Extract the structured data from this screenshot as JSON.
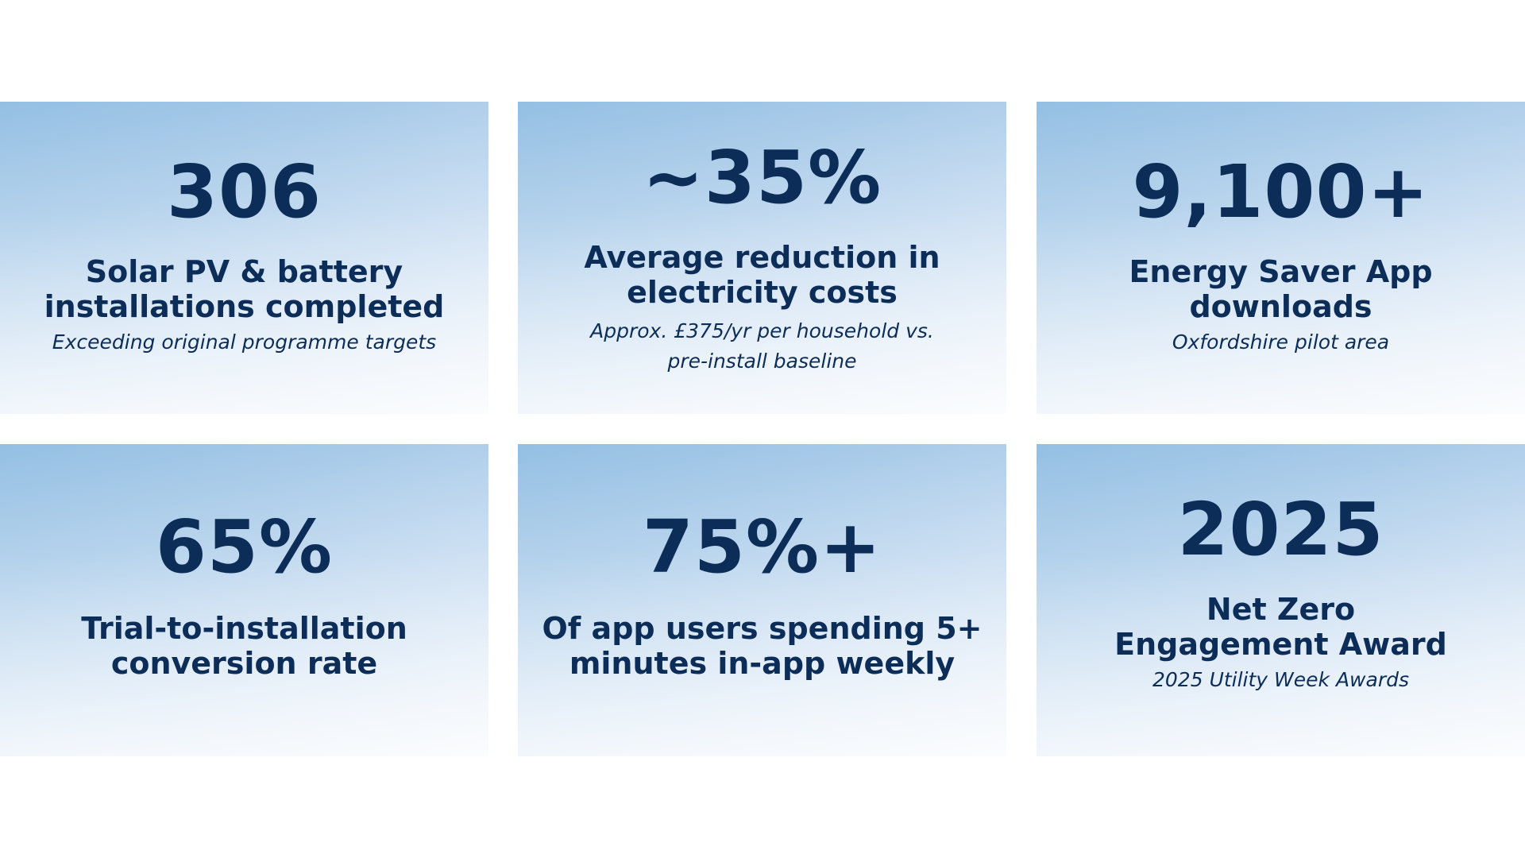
{
  "cards": [
    {
      "stat": "306",
      "label_line1": "Solar PV & battery",
      "label_line2": "installations completed",
      "note": "Exceeding original programme targets"
    },
    {
      "stat": "~35%",
      "label_line1": "Average reduction in",
      "label_line2": "electricity costs",
      "note_line1": "Approx. £375/yr per household vs.",
      "note_line2": "pre-install baseline"
    },
    {
      "stat": "9,100+",
      "label_line1": "Energy Saver App",
      "label_line2": "downloads",
      "note": "Oxfordshire pilot area"
    },
    {
      "stat": "65%",
      "label_line1": "Trial-to-installation",
      "label_line2": "conversion rate"
    },
    {
      "stat": "75%+",
      "label_line1": "Of app users spending 5+",
      "label_line2": "minutes in-app weekly"
    },
    {
      "stat": "2025",
      "label_line1": "Net Zero",
      "label_line2": "Engagement Award",
      "note": "2025 Utility Week Awards"
    }
  ],
  "colors": {
    "text": "#0c2d57",
    "card_top": "#93bfe3",
    "card_bottom": "#edf3fa"
  }
}
